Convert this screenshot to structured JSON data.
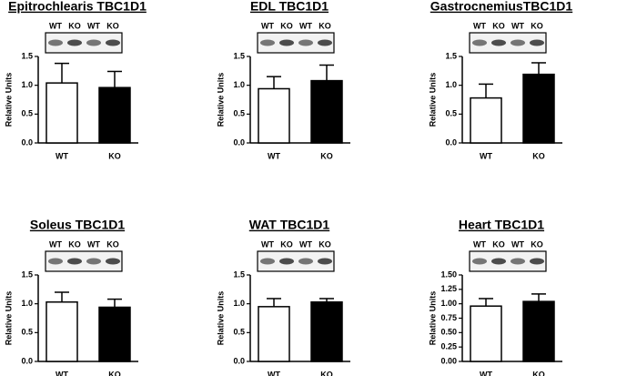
{
  "chart_data": [
    {
      "type": "bar",
      "title": "Epitrochlearis TBC1D1",
      "lane_labels": [
        "WT",
        "KO",
        "WT",
        "KO"
      ],
      "ylabel": "Relative Units",
      "categories": [
        "WT",
        "KO"
      ],
      "values": [
        1.04,
        0.96
      ],
      "errors": [
        0.34,
        0.28
      ],
      "colors": [
        "#ffffff",
        "#000000"
      ],
      "ylim": [
        0,
        1.5
      ],
      "yticks": [
        {
          "value": 0,
          "label": "0.0"
        },
        {
          "value": 0.5,
          "label": "0.5"
        },
        {
          "value": 1,
          "label": "1.0"
        },
        {
          "value": 1.5,
          "label": "1.5"
        }
      ]
    },
    {
      "type": "bar",
      "title": "EDL TBC1D1",
      "lane_labels": [
        "WT",
        "KO",
        "WT",
        "KO"
      ],
      "ylabel": "Relative Units",
      "categories": [
        "WT",
        "KO"
      ],
      "values": [
        0.94,
        1.08
      ],
      "errors": [
        0.21,
        0.27
      ],
      "colors": [
        "#ffffff",
        "#000000"
      ],
      "ylim": [
        0,
        1.5
      ],
      "yticks": [
        {
          "value": 0,
          "label": "0.0"
        },
        {
          "value": 0.5,
          "label": "0.5"
        },
        {
          "value": 1,
          "label": "1.0"
        },
        {
          "value": 1.5,
          "label": "1.5"
        }
      ]
    },
    {
      "type": "bar",
      "title": "GastrocnemiusTBC1D1",
      "lane_labels": [
        "WT",
        "KO",
        "WT",
        "KO"
      ],
      "ylabel": "Relative Units",
      "categories": [
        "WT",
        "KO"
      ],
      "values": [
        0.78,
        1.19
      ],
      "errors": [
        0.24,
        0.2
      ],
      "colors": [
        "#ffffff",
        "#000000"
      ],
      "ylim": [
        0,
        1.5
      ],
      "yticks": [
        {
          "value": 0,
          "label": "0.0"
        },
        {
          "value": 0.5,
          "label": "0.5"
        },
        {
          "value": 1,
          "label": "1.0"
        },
        {
          "value": 1.5,
          "label": "1.5"
        }
      ]
    },
    {
      "type": "bar",
      "title": "Soleus TBC1D1",
      "lane_labels": [
        "WT",
        "KO",
        "WT",
        "KO"
      ],
      "ylabel": "Relative Units",
      "categories": [
        "WT",
        "KO"
      ],
      "values": [
        1.03,
        0.94
      ],
      "errors": [
        0.17,
        0.14
      ],
      "colors": [
        "#ffffff",
        "#000000"
      ],
      "ylim": [
        0,
        1.5
      ],
      "yticks": [
        {
          "value": 0,
          "label": "0.0"
        },
        {
          "value": 0.5,
          "label": "0.5"
        },
        {
          "value": 1,
          "label": "1.0"
        },
        {
          "value": 1.5,
          "label": "1.5"
        }
      ]
    },
    {
      "type": "bar",
      "title": "WAT TBC1D1",
      "lane_labels": [
        "WT",
        "KO",
        "WT",
        "KO"
      ],
      "ylabel": "Relative Units",
      "categories": [
        "WT",
        "KO"
      ],
      "values": [
        0.95,
        1.03
      ],
      "errors": [
        0.14,
        0.06
      ],
      "colors": [
        "#ffffff",
        "#000000"
      ],
      "ylim": [
        0,
        1.5
      ],
      "yticks": [
        {
          "value": 0,
          "label": "0.0"
        },
        {
          "value": 0.5,
          "label": "0.5"
        },
        {
          "value": 1,
          "label": "1.0"
        },
        {
          "value": 1.5,
          "label": "1.5"
        }
      ]
    },
    {
      "type": "bar",
      "title": "Heart TBC1D1",
      "lane_labels": [
        "WT",
        "KO",
        "WT",
        "KO"
      ],
      "ylabel": "Relative Units",
      "categories": [
        "WT",
        "KO"
      ],
      "values": [
        0.96,
        1.04
      ],
      "errors": [
        0.13,
        0.13
      ],
      "colors": [
        "#ffffff",
        "#000000"
      ],
      "ylim": [
        0,
        1.5
      ],
      "yticks": [
        {
          "value": 0,
          "label": "0.00"
        },
        {
          "value": 0.25,
          "label": "0.25"
        },
        {
          "value": 0.5,
          "label": "0.50"
        },
        {
          "value": 0.75,
          "label": "0.75"
        },
        {
          "value": 1,
          "label": "1.00"
        },
        {
          "value": 1.25,
          "label": "1.25"
        },
        {
          "value": 1.5,
          "label": "1.50"
        }
      ]
    }
  ]
}
